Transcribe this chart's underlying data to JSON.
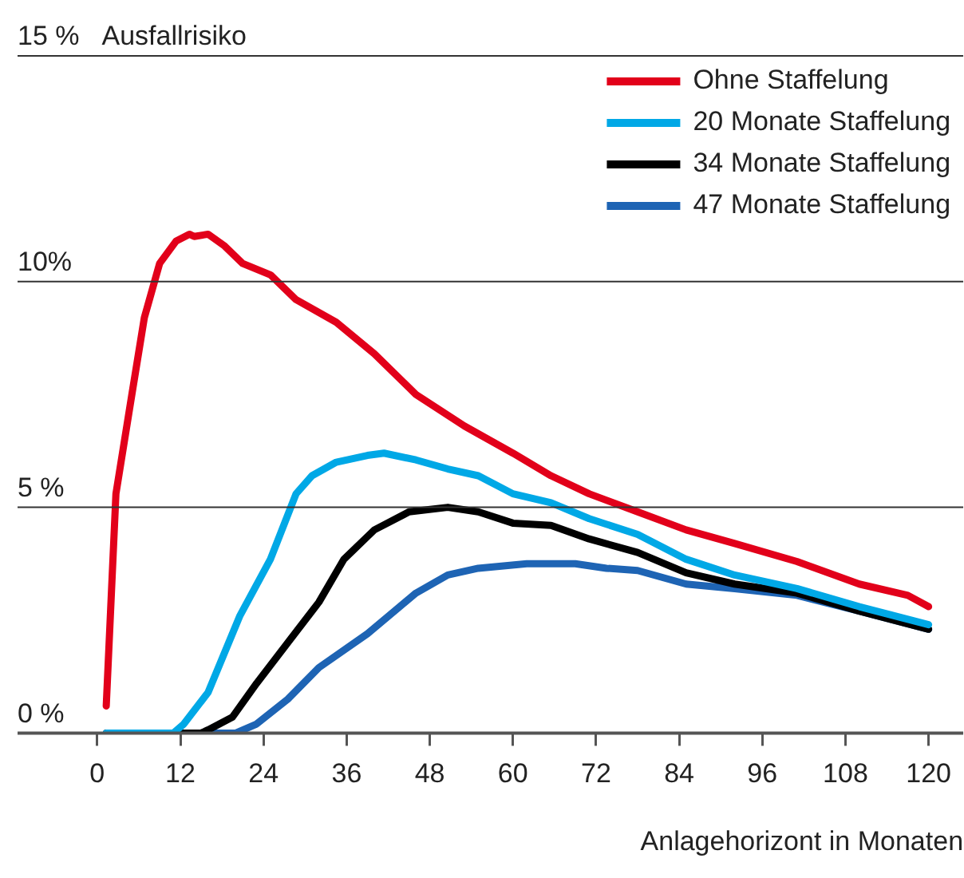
{
  "chart_data": {
    "type": "line",
    "ylabel": "Ausfallrisiko",
    "xlabel": "Anlagehorizont in Monaten",
    "xlim": [
      -11.5,
      125
    ],
    "xticks": [
      0,
      12,
      24,
      36,
      48,
      60,
      72,
      84,
      96,
      108,
      120
    ],
    "ylim": [
      0,
      15
    ],
    "yticks": [
      {
        "value": 0,
        "label": "0 %"
      },
      {
        "value": 5,
        "label": "5 %"
      },
      {
        "value": 10,
        "label": "10%"
      },
      {
        "value": 15,
        "label": "15 %"
      }
    ],
    "grid": "y",
    "legend": "top right",
    "marker": "none",
    "line_style": "solid",
    "series": [
      {
        "name": "Ohne Staffelung",
        "color": "#e2001a",
        "x": [
          1.3,
          2.7,
          5,
          6.8,
          9,
          11.4,
          13.3,
          14,
          16,
          18.3,
          21,
          25,
          28.7,
          34.5,
          40,
          46,
          53,
          60,
          65.5,
          71,
          78,
          85,
          92,
          101,
          110,
          117,
          120
        ],
        "values": [
          0.6,
          5.3,
          7.5,
          9.2,
          10.4,
          10.9,
          11.05,
          11,
          11.05,
          10.8,
          10.4,
          10.15,
          9.6,
          9.1,
          8.4,
          7.5,
          6.8,
          6.2,
          5.7,
          5.3,
          4.9,
          4.5,
          4.2,
          3.8,
          3.3,
          3.05,
          2.8
        ]
      },
      {
        "name": "20 Monate Staffelung",
        "color": "#00a8e6",
        "x": [
          1.3,
          11,
          12.5,
          16,
          20.6,
          25,
          28.7,
          31,
          34.5,
          39,
          41.4,
          46,
          50.6,
          55,
          60,
          65.5,
          71,
          78,
          85,
          92,
          101,
          110,
          120
        ],
        "values": [
          0,
          0,
          0.2,
          0.9,
          2.6,
          3.85,
          5.3,
          5.7,
          6,
          6.15,
          6.2,
          6.05,
          5.85,
          5.7,
          5.3,
          5.1,
          4.75,
          4.4,
          3.85,
          3.5,
          3.2,
          2.8,
          2.4
        ]
      },
      {
        "name": "34 Monate Staffelung",
        "color": "#000000",
        "x": [
          1.3,
          15,
          16,
          19.5,
          23,
          27.5,
          32,
          35.6,
          40,
          45,
          50.6,
          55,
          60,
          65.5,
          71,
          78,
          85,
          92,
          101,
          110,
          120
        ],
        "values": [
          0,
          0,
          0.07,
          0.35,
          1.1,
          2,
          2.9,
          3.85,
          4.5,
          4.9,
          5,
          4.9,
          4.65,
          4.6,
          4.3,
          4,
          3.55,
          3.3,
          3.1,
          2.7,
          2.3
        ]
      },
      {
        "name": "47 Monate Staffelung",
        "color": "#1e64b4",
        "x": [
          1.3,
          20,
          23,
          27.5,
          32,
          39,
          46,
          50.6,
          55,
          62,
          69,
          73.5,
          78,
          85,
          92,
          101,
          110,
          120
        ],
        "values": [
          0,
          0,
          0.2,
          0.75,
          1.45,
          2.2,
          3.1,
          3.5,
          3.65,
          3.75,
          3.75,
          3.65,
          3.6,
          3.3,
          3.2,
          3.05,
          2.7,
          2.3
        ]
      }
    ]
  }
}
